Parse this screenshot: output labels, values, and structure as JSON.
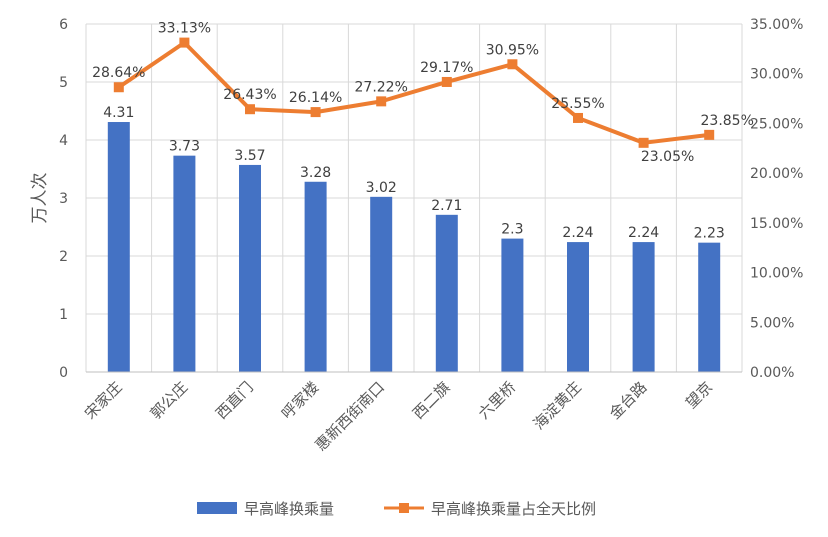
{
  "chart_data": {
    "type": "bar+line",
    "title": "",
    "xlabel": "",
    "ylabel": "万人次",
    "ylim": [
      0,
      6
    ],
    "y2lim": [
      0,
      0.35
    ],
    "y_ticks": [
      "0",
      "1",
      "2",
      "3",
      "4",
      "5",
      "6"
    ],
    "y2_ticks": [
      "0.00%",
      "5.00%",
      "10.00%",
      "15.00%",
      "20.00%",
      "25.00%",
      "30.00%",
      "35.00%"
    ],
    "grid": true,
    "legend_position": "bottom",
    "categories": [
      "宋家庄",
      "郭公庄",
      "西直门",
      "呼家楼",
      "惠新西街南口",
      "西二旗",
      "六里桥",
      "海淀黄庄",
      "金台路",
      "望京"
    ],
    "series": [
      {
        "name": "早高峰换乘量",
        "type": "bar",
        "axis": "left",
        "values": [
          4.31,
          3.73,
          3.57,
          3.28,
          3.02,
          2.71,
          2.3,
          2.24,
          2.24,
          2.23
        ],
        "labels": [
          "4.31",
          "3.73",
          "3.57",
          "3.28",
          "3.02",
          "2.71",
          "2.3",
          "2.24",
          "2.24",
          "2.23"
        ],
        "color": "#4472C4"
      },
      {
        "name": "早高峰换乘量占全天比例",
        "type": "line",
        "axis": "right",
        "values": [
          0.2864,
          0.3313,
          0.2643,
          0.2614,
          0.2722,
          0.2917,
          0.3095,
          0.2555,
          0.2305,
          0.2385
        ],
        "labels": [
          "28.64%",
          "33.13%",
          "26.43%",
          "26.14%",
          "27.22%",
          "29.17%",
          "30.95%",
          "25.55%",
          "23.05%",
          "23.85%"
        ],
        "color": "#ED7D31"
      }
    ]
  }
}
